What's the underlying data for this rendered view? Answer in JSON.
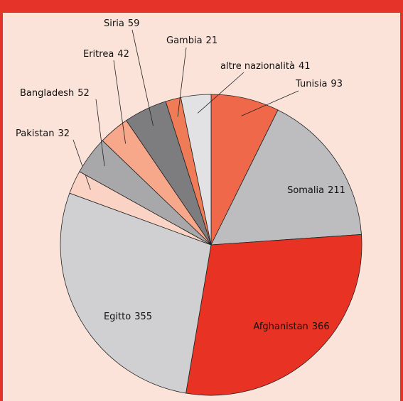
{
  "chart_data": {
    "type": "pie",
    "categories": [
      "Tunisia",
      "Somalia",
      "Afghanistan",
      "Egitto",
      "Pakistan",
      "Bangladesh",
      "Eritrea",
      "Siria",
      "Gambia",
      "altre nazionalità"
    ],
    "values": [
      93,
      211,
      366,
      355,
      32,
      52,
      42,
      59,
      21,
      41
    ],
    "colors": [
      "#f0684a",
      "#bdbdbf",
      "#e83324",
      "#d0d0d2",
      "#fbd3c5",
      "#a8a8aa",
      "#f7a78a",
      "#7d7d80",
      "#f07b57",
      "#e2e2e4"
    ]
  }
}
